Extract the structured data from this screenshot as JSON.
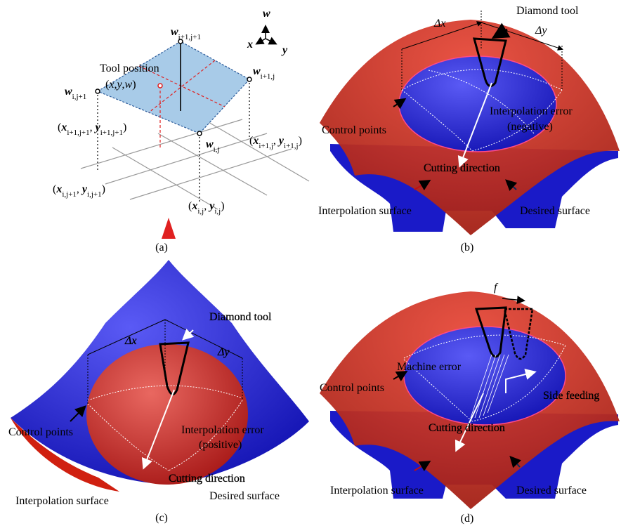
{
  "panels": [
    {
      "caption": "(a)",
      "labels": [
        {
          "parts": [
            {
              "text": "Tool position"
            }
          ]
        },
        {
          "parts": [
            {
              "text": "("
            },
            {
              "text": "x",
              "style": "italic"
            },
            {
              "text": ","
            },
            {
              "text": "y",
              "style": "italic"
            },
            {
              "text": ","
            },
            {
              "text": "w",
              "style": "italic"
            },
            {
              "text": ")"
            }
          ]
        },
        {
          "parts": [
            {
              "text": "w",
              "style": "bold-italic"
            },
            {
              "text": "i+1,j+1",
              "style": "sub"
            }
          ]
        },
        {
          "parts": [
            {
              "text": "w",
              "style": "bold-italic"
            },
            {
              "text": "i,j+1",
              "style": "sub"
            }
          ]
        },
        {
          "parts": [
            {
              "text": "w",
              "style": "bold-italic"
            },
            {
              "text": "i+1,j",
              "style": "sub"
            }
          ]
        },
        {
          "parts": [
            {
              "text": "w",
              "style": "bold-italic"
            },
            {
              "text": "i,j",
              "style": "sub"
            }
          ]
        },
        {
          "parts": [
            {
              "text": "("
            },
            {
              "text": "x",
              "style": "bold-italic"
            },
            {
              "text": "i+1,j+1",
              "style": "sub"
            },
            {
              "text": ", "
            },
            {
              "text": "y",
              "style": "bold-italic"
            },
            {
              "text": "i+1,j+1",
              "style": "sub"
            },
            {
              "text": ")"
            }
          ]
        },
        {
          "parts": [
            {
              "text": "("
            },
            {
              "text": "x",
              "style": "bold-italic"
            },
            {
              "text": "i+1,j",
              "style": "sub"
            },
            {
              "text": ", "
            },
            {
              "text": "y",
              "style": "bold-italic"
            },
            {
              "text": "i+1,j",
              "style": "sub"
            },
            {
              "text": ")"
            }
          ]
        },
        {
          "parts": [
            {
              "text": "("
            },
            {
              "text": "x",
              "style": "bold-italic"
            },
            {
              "text": "i,j+1",
              "style": "sub"
            },
            {
              "text": ", "
            },
            {
              "text": "y",
              "style": "bold-italic"
            },
            {
              "text": "i,j+1",
              "style": "sub"
            },
            {
              "text": ")"
            }
          ]
        },
        {
          "parts": [
            {
              "text": "("
            },
            {
              "text": "x",
              "style": "bold-italic"
            },
            {
              "text": "i,j",
              "style": "sub"
            },
            {
              "text": ", "
            },
            {
              "text": "y",
              "style": "bold-italic"
            },
            {
              "text": "i,j",
              "style": "sub"
            },
            {
              "text": ")"
            }
          ]
        },
        {
          "parts": [
            {
              "text": "w",
              "style": "bold-italic"
            }
          ]
        },
        {
          "parts": [
            {
              "text": "x",
              "style": "bold-italic"
            }
          ]
        },
        {
          "parts": [
            {
              "text": "y",
              "style": "bold-italic"
            }
          ]
        }
      ]
    },
    {
      "caption": "(b)",
      "labels": [
        {
          "parts": [
            {
              "text": "Diamond tool"
            }
          ]
        },
        {
          "parts": [
            {
              "text": "Δx",
              "style": "italic"
            }
          ]
        },
        {
          "parts": [
            {
              "text": "Δy",
              "style": "italic"
            }
          ]
        },
        {
          "parts": [
            {
              "text": "Interpolation error"
            }
          ],
          "color": "#f0dc00"
        },
        {
          "parts": [
            {
              "text": "(negative)"
            }
          ],
          "color": "#f0dc00"
        },
        {
          "parts": [
            {
              "text": "Control points"
            }
          ]
        },
        {
          "parts": [
            {
              "text": "Cutting direction"
            }
          ],
          "color": "#ffffff"
        },
        {
          "parts": [
            {
              "text": "Interpolation surface"
            }
          ]
        },
        {
          "parts": [
            {
              "text": "Desired surface"
            }
          ]
        }
      ]
    },
    {
      "caption": "(c)",
      "labels": [
        {
          "parts": [
            {
              "text": "Diamond tool"
            }
          ],
          "color": "#ffffff"
        },
        {
          "parts": [
            {
              "text": "Δx",
              "style": "italic"
            }
          ],
          "color": "#ffffff"
        },
        {
          "parts": [
            {
              "text": "Δy",
              "style": "italic"
            }
          ],
          "color": "#ffffff"
        },
        {
          "parts": [
            {
              "text": "Control points"
            }
          ]
        },
        {
          "parts": [
            {
              "text": "Interpolation error"
            }
          ],
          "color": "#f0dc00"
        },
        {
          "parts": [
            {
              "text": "(positive)"
            }
          ],
          "color": "#f0dc00"
        },
        {
          "parts": [
            {
              "text": "Cutting direction"
            }
          ],
          "color": "#ffffff"
        },
        {
          "parts": [
            {
              "text": "Interpolation surface"
            }
          ]
        },
        {
          "parts": [
            {
              "text": "Desired surface"
            }
          ]
        }
      ]
    },
    {
      "caption": "(d)",
      "labels": [
        {
          "parts": [
            {
              "text": "f",
              "style": "italic"
            }
          ]
        },
        {
          "parts": [
            {
              "text": "Machine error"
            }
          ],
          "color": "#f0dc00"
        },
        {
          "parts": [
            {
              "text": "Control points"
            }
          ]
        },
        {
          "parts": [
            {
              "text": "Side feeding"
            }
          ],
          "color": "#ffffff"
        },
        {
          "parts": [
            {
              "text": "Cutting direction"
            }
          ],
          "color": "#ffffff"
        },
        {
          "parts": [
            {
              "text": "Interpolation surface"
            }
          ]
        },
        {
          "parts": [
            {
              "text": "Desired surface"
            }
          ]
        }
      ]
    }
  ]
}
